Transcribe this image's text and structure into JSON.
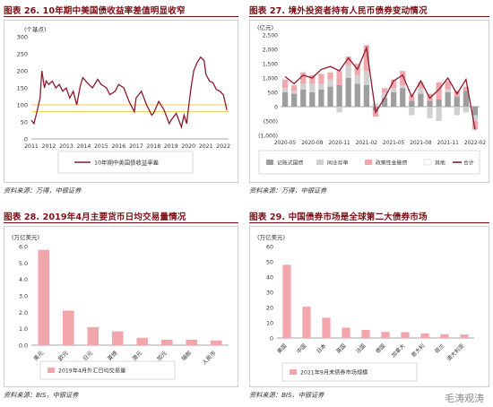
{
  "panels": [
    {
      "title": "图表 26. 10年期中美国债收益率差值明显收窄",
      "source": "资料来源：万得，中银证券"
    },
    {
      "title": "图表 27. 境外投资者持有人民币债券变动情况",
      "source": "资料来源：万得，中银证券"
    },
    {
      "title": "图表 28. 2019年4月主要货币日均交易量情况",
      "source": "资料来源：BIS，中银证券"
    },
    {
      "title": "图表 29. 中国债券市场是全球第二大债券市场",
      "source": "资料来源：BIS，中银证券"
    }
  ],
  "watermark": "毛涛观涛",
  "chart_data": [
    {
      "type": "line",
      "unit": "(个基点)",
      "x_ticks": [
        "2011",
        "2012",
        "2013",
        "2014",
        "2015",
        "2016",
        "2017",
        "2018",
        "2019",
        "2020",
        "2021",
        "2022"
      ],
      "ylim": [
        0,
        300
      ],
      "yticks": [
        0,
        50,
        100,
        150,
        200,
        250,
        300
      ],
      "legend": "10年期中美国债收益率差",
      "legend_placement": "bottom-center",
      "reference_lines": [
        100,
        80
      ],
      "reference_color": "#f2c94c",
      "color": "#8b1a2b",
      "x": [
        2011.0,
        2011.15,
        2011.3,
        2011.5,
        2011.6,
        2011.75,
        2011.85,
        2012.0,
        2012.2,
        2012.4,
        2012.6,
        2012.8,
        2013.0,
        2013.2,
        2013.4,
        2013.6,
        2013.8,
        2013.95,
        2014.2,
        2014.5,
        2014.8,
        2015.0,
        2015.3,
        2015.5,
        2015.8,
        2016.0,
        2016.3,
        2016.6,
        2016.9,
        2017.0,
        2017.3,
        2017.6,
        2017.9,
        2018.0,
        2018.3,
        2018.6,
        2018.9,
        2019.0,
        2019.3,
        2019.6,
        2019.75,
        2019.9,
        2020.0,
        2020.15,
        2020.3,
        2020.5,
        2020.7,
        2020.9,
        2021.0,
        2021.2,
        2021.4,
        2021.6,
        2021.8,
        2022.0,
        2022.2
      ],
      "y": [
        55,
        45,
        75,
        120,
        200,
        150,
        170,
        160,
        170,
        150,
        160,
        140,
        150,
        120,
        140,
        100,
        155,
        180,
        165,
        150,
        175,
        160,
        150,
        130,
        140,
        160,
        150,
        110,
        80,
        120,
        140,
        100,
        70,
        75,
        110,
        85,
        45,
        55,
        75,
        35,
        70,
        45,
        90,
        150,
        200,
        225,
        240,
        230,
        190,
        170,
        165,
        145,
        140,
        130,
        85
      ],
      "color_line": "#8b1a2b"
    },
    {
      "type": "bar+line",
      "unit": "(亿元)",
      "x_ticks": [
        "2020-05",
        "2020-08",
        "2020-11",
        "2021-02",
        "2021-05",
        "2021-08",
        "2021-11",
        "2022-02"
      ],
      "ylim": [
        -1000,
        2500
      ],
      "yticks": [
        -1000,
        -500,
        0,
        500,
        1000,
        1500,
        2000,
        2500
      ],
      "ytick_labels": [
        "(1,000)",
        "(500)",
        "0",
        "500",
        "1,000",
        "1,500",
        "2,000",
        "2,500"
      ],
      "categories": [
        "2020-05",
        "2020-06",
        "2020-07",
        "2020-08",
        "2020-09",
        "2020-10",
        "2020-11",
        "2020-12",
        "2021-01",
        "2021-02",
        "2021-03",
        "2021-04",
        "2021-05",
        "2021-06",
        "2021-07",
        "2021-08",
        "2021-09",
        "2021-10",
        "2021-11",
        "2021-12",
        "2022-01",
        "2022-02"
      ],
      "series": [
        {
          "name": "记账式国债",
          "color": "#9e9e9e",
          "values": [
            500,
            450,
            600,
            500,
            600,
            700,
            750,
            1000,
            800,
            750,
            -150,
            300,
            500,
            650,
            200,
            450,
            200,
            250,
            500,
            350,
            550,
            -300
          ]
        },
        {
          "name": "同业存单",
          "color": "#d0d0d0",
          "values": [
            150,
            100,
            200,
            300,
            200,
            250,
            -200,
            450,
            300,
            500,
            100,
            200,
            150,
            100,
            -300,
            200,
            -400,
            -500,
            100,
            -300,
            -200,
            -200
          ]
        },
        {
          "name": "政策性金融债",
          "color": "#f0a8ae",
          "values": [
            300,
            200,
            400,
            300,
            350,
            250,
            500,
            300,
            400,
            900,
            -200,
            150,
            300,
            500,
            200,
            200,
            250,
            600,
            300,
            200,
            150,
            -300
          ]
        },
        {
          "name": "其他",
          "color": "#ffffff",
          "values": [
            50,
            30,
            50,
            40,
            60,
            40,
            50,
            80,
            60,
            100,
            20,
            40,
            50,
            60,
            40,
            40,
            30,
            50,
            50,
            40,
            30,
            -20
          ]
        },
        {
          "name": "合计",
          "color": "#8b1a2b",
          "kind": "line",
          "values": [
            1050,
            800,
            1100,
            1000,
            1300,
            1400,
            1250,
            1700,
            1300,
            2050,
            -200,
            300,
            900,
            1100,
            350,
            900,
            300,
            600,
            1000,
            450,
            950,
            -800
          ]
        }
      ]
    },
    {
      "type": "bar",
      "unit": "(万亿美元)",
      "categories": [
        "美元",
        "欧元",
        "日元",
        "英镑",
        "澳元",
        "加元",
        "瑞郎",
        "人民币"
      ],
      "values": [
        5.8,
        2.1,
        1.1,
        0.84,
        0.45,
        0.33,
        0.33,
        0.28
      ],
      "ylim": [
        0,
        6
      ],
      "yticks": [
        0,
        1,
        2,
        3,
        4,
        5,
        6
      ],
      "ytick_labels": [
        "0.0",
        "1.0",
        "2.0",
        "3.0",
        "4.0",
        "5.0",
        "6.0"
      ],
      "legend": "2019年4月外汇日均交易量",
      "color": "#f2a5ab"
    },
    {
      "type": "bar",
      "unit": "(万亿美元)",
      "categories": [
        "美国",
        "中国",
        "日本",
        "英国",
        "法国",
        "德国",
        "加拿大",
        "意大利",
        "荷兰",
        "澳大利亚"
      ],
      "values": [
        48,
        20.5,
        13.3,
        6.8,
        5.3,
        4.0,
        3.8,
        3.0,
        2.5,
        2.3
      ],
      "ylim": [
        0,
        60
      ],
      "yticks": [
        0,
        10,
        20,
        30,
        40,
        50,
        60
      ],
      "legend": "2021年9月末债券市场规模",
      "color": "#f2a5ab"
    }
  ]
}
